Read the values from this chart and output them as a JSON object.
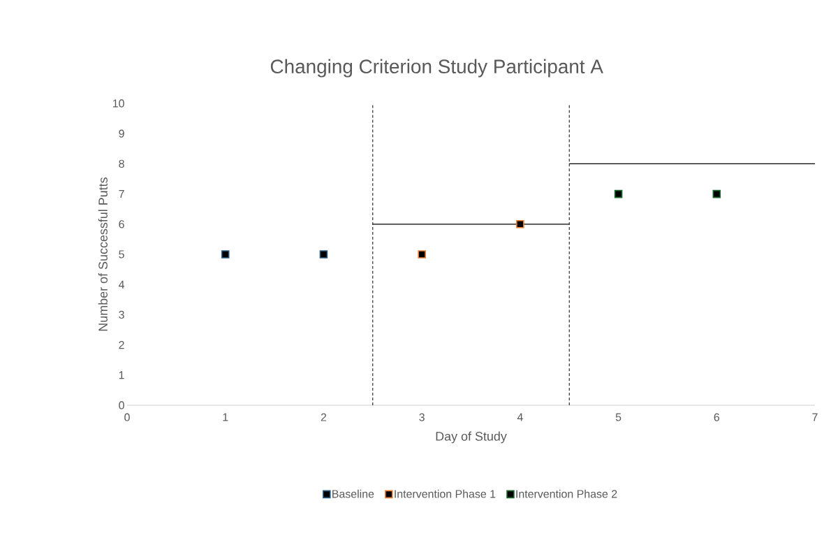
{
  "chart_data": {
    "type": "scatter",
    "title": "Changing Criterion Study Participant A",
    "xlabel": "Day of Study",
    "ylabel": "Number of Successful Putts",
    "series": [
      {
        "name": "Baseline",
        "color": "#2a5d83",
        "x": [
          1,
          2
        ],
        "values": [
          5,
          5
        ]
      },
      {
        "name": "Intervention Phase 1",
        "color": "#ed7d31",
        "x": [
          3,
          4
        ],
        "values": [
          5,
          6
        ]
      },
      {
        "name": "Intervention Phase 2",
        "color": "#1e6b2e",
        "x": [
          5,
          6
        ],
        "values": [
          7,
          7
        ]
      },
      {
        "type": "line",
        "color": "#000000",
        "marker": "none",
        "x": [
          2.5,
          4.5
        ],
        "values": [
          6,
          6
        ]
      },
      {
        "type": "line",
        "color": "#000000",
        "marker": "none",
        "x": [
          4.5,
          7
        ],
        "values": [
          8,
          8
        ]
      }
    ],
    "ref_lines": [
      {
        "axis": "x",
        "value": 2.5,
        "color": "#000000",
        "line_style": "dashed"
      },
      {
        "axis": "x",
        "value": 4.5,
        "color": "#000000",
        "line_style": "dashed"
      }
    ],
    "xlim": [
      0,
      7
    ],
    "ylim": [
      0,
      10
    ],
    "xticks": [
      0,
      1,
      2,
      3,
      4,
      5,
      6,
      7
    ],
    "yticks": [
      0,
      1,
      2,
      3,
      4,
      5,
      6,
      7,
      8,
      9,
      10
    ],
    "marker": "square",
    "grid": false,
    "legend": "bottom"
  }
}
